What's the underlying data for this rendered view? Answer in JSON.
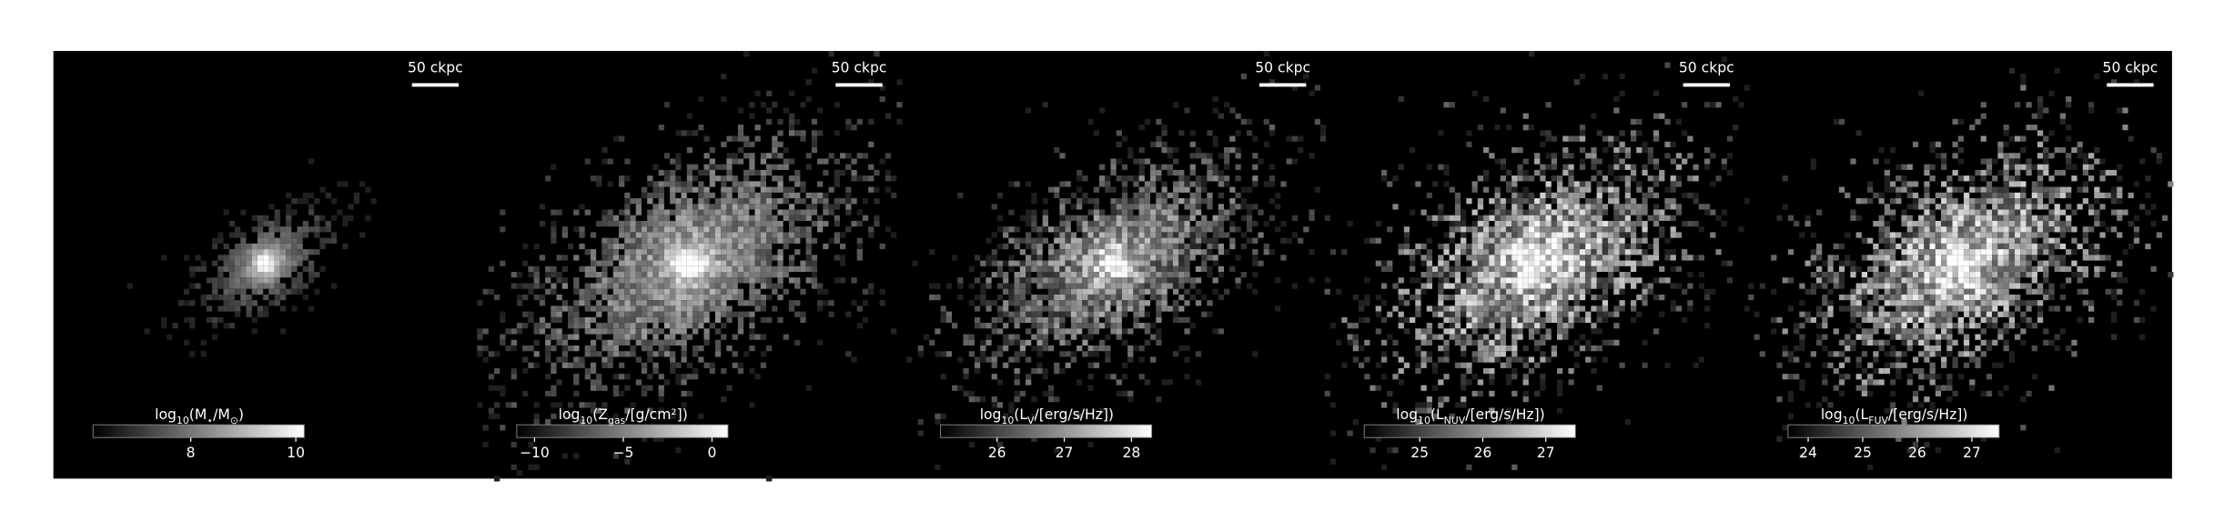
{
  "chart_data": [
    {
      "type": "image",
      "colorbar_label": [
        "log",
        "10",
        "(M",
        "⋆",
        "/M",
        "⊙",
        ")"
      ],
      "clim": [
        6.14,
        10.16
      ],
      "ticks": [
        8,
        10
      ],
      "scale_bar_label": "50 ckpc"
    },
    {
      "type": "image",
      "colorbar_label": [
        "log",
        "10",
        "(Z",
        "gas",
        "/[g/cm²])"
      ],
      "clim": [
        -11.0,
        0.9
      ],
      "ticks": [
        {
          "value": -10,
          "label": "−10"
        },
        {
          "value": -5,
          "label": "−5"
        },
        0
      ],
      "scale_bar_label": "50 ckpc"
    },
    {
      "type": "image",
      "colorbar_label": [
        "log",
        "10",
        "(L",
        "V",
        "/[erg/s/Hz])"
      ],
      "clim": [
        25.16,
        28.3
      ],
      "ticks": [
        26,
        27,
        28
      ],
      "scale_bar_label": "50 ckpc"
    },
    {
      "type": "image",
      "colorbar_label": [
        "log",
        "10",
        "(L",
        "NUV",
        "/[erg/s/Hz])"
      ],
      "clim": [
        24.12,
        27.47
      ],
      "ticks": [
        25,
        26,
        27
      ],
      "scale_bar_label": "50 ckpc"
    },
    {
      "type": "image",
      "colorbar_label": [
        "log",
        "10",
        "(L",
        "FUV",
        "/[erg/s/Hz])"
      ],
      "clim": [
        23.63,
        27.5
      ],
      "ticks": [
        24,
        25,
        26,
        27
      ],
      "scale_bar_label": "50 ckpc"
    }
  ]
}
